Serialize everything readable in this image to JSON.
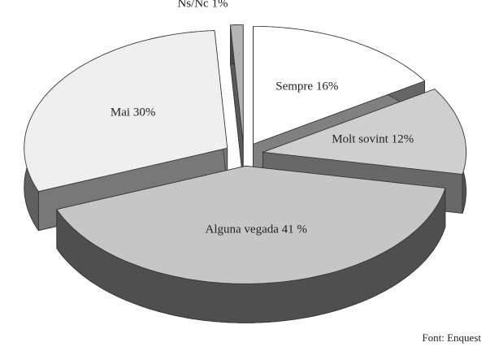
{
  "chart_data": {
    "type": "pie3d",
    "categories": [
      "Sempre",
      "Molt sovint",
      "Alguna vegada",
      "Mai",
      "Ns/Nc"
    ],
    "values": [
      16,
      12,
      41,
      30,
      1
    ],
    "value_labels": [
      "16%",
      "12%",
      "41 %",
      "30%",
      "1%"
    ],
    "colors": [
      "#ffffff",
      "#cfcfcf",
      "#c6c6c6",
      "#efefef",
      "#b4b4b4"
    ],
    "source": "Font: Enquest"
  }
}
